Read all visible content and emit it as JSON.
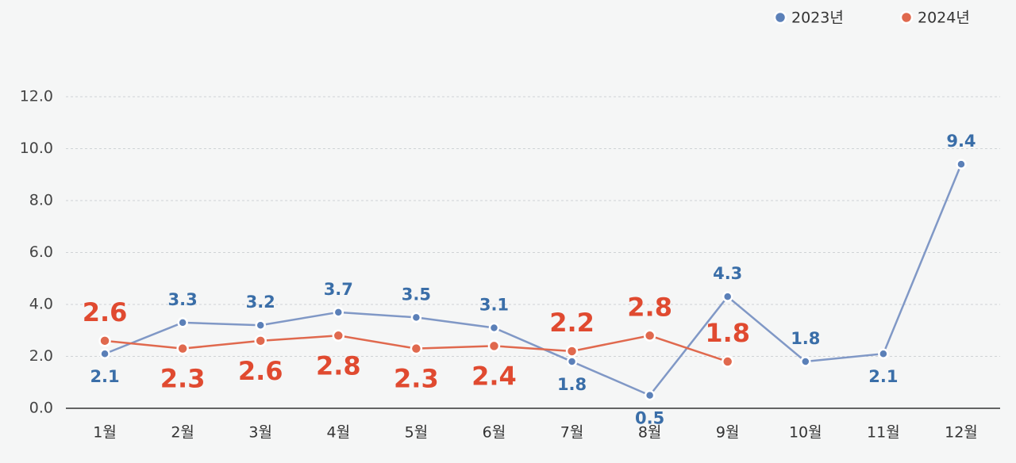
{
  "chart_data": {
    "type": "line",
    "categories": [
      "1월",
      "2월",
      "3월",
      "4월",
      "5월",
      "6월",
      "7월",
      "8월",
      "9월",
      "10월",
      "11월",
      "12월"
    ],
    "series": [
      {
        "name": "2023년",
        "color": "#5b80b8",
        "values": [
          2.1,
          3.3,
          3.2,
          3.7,
          3.5,
          3.1,
          1.8,
          0.5,
          4.3,
          1.8,
          2.1,
          9.4
        ]
      },
      {
        "name": "2024년",
        "color": "#e0694e",
        "values": [
          2.6,
          2.3,
          2.6,
          2.8,
          2.3,
          2.4,
          2.2,
          2.8,
          1.8,
          null,
          null,
          null
        ]
      }
    ],
    "ylim": [
      0,
      12
    ],
    "yticks": [
      {
        "value": 0,
        "label": "0.0"
      },
      {
        "value": 2,
        "label": "2.0"
      },
      {
        "value": 4,
        "label": "4.0"
      },
      {
        "value": 6,
        "label": "6.0"
      },
      {
        "value": 8,
        "label": "8.0"
      },
      {
        "value": 10,
        "label": "10.0"
      },
      {
        "value": 12,
        "label": "12.0"
      }
    ],
    "grid": true,
    "legend": "top-right"
  }
}
